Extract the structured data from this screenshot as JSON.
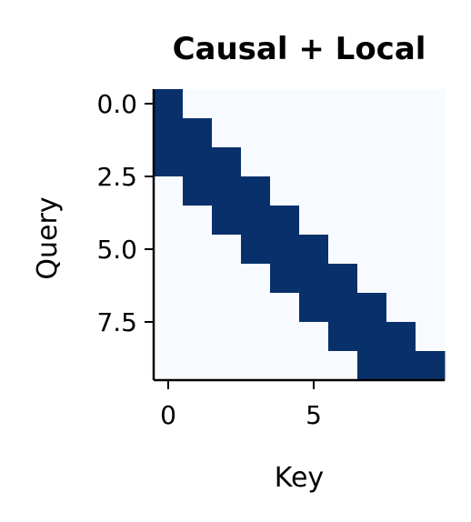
{
  "chart_data": {
    "type": "heatmap",
    "title": "Causal + Local",
    "xlabel": "Key",
    "ylabel": "Query",
    "x_ticks": [
      0,
      5
    ],
    "x_tick_labels": [
      "0",
      "5"
    ],
    "y_ticks": [
      0.0,
      2.5,
      5.0,
      7.5
    ],
    "y_tick_labels": [
      "0.0",
      "2.5",
      "5.0",
      "7.5"
    ],
    "xlim": [
      -0.5,
      9.5
    ],
    "ylim": [
      9.5,
      -0.5
    ],
    "rows": 10,
    "cols": 10,
    "colormap": "Blues",
    "colors": {
      "low": "#f7fbff",
      "high": "#08306b"
    },
    "values": [
      [
        1,
        0,
        0,
        0,
        0,
        0,
        0,
        0,
        0,
        0
      ],
      [
        1,
        1,
        0,
        0,
        0,
        0,
        0,
        0,
        0,
        0
      ],
      [
        1,
        1,
        1,
        0,
        0,
        0,
        0,
        0,
        0,
        0
      ],
      [
        0,
        1,
        1,
        1,
        0,
        0,
        0,
        0,
        0,
        0
      ],
      [
        0,
        0,
        1,
        1,
        1,
        0,
        0,
        0,
        0,
        0
      ],
      [
        0,
        0,
        0,
        1,
        1,
        1,
        0,
        0,
        0,
        0
      ],
      [
        0,
        0,
        0,
        0,
        1,
        1,
        1,
        0,
        0,
        0
      ],
      [
        0,
        0,
        0,
        0,
        0,
        1,
        1,
        1,
        0,
        0
      ],
      [
        0,
        0,
        0,
        0,
        0,
        0,
        1,
        1,
        1,
        0
      ],
      [
        0,
        0,
        0,
        0,
        0,
        0,
        0,
        1,
        1,
        1
      ]
    ],
    "grid": false
  }
}
